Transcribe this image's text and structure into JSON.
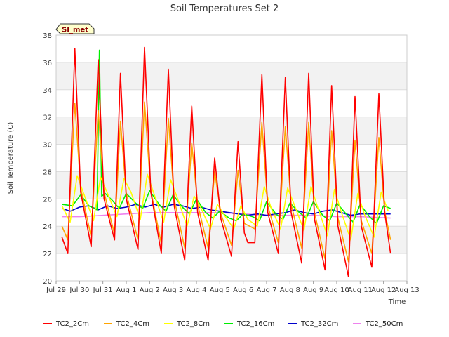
{
  "chart_data": {
    "type": "line",
    "title": "Soil Temperatures Set 2",
    "xlabel": "Time",
    "ylabel": "Soil Temperature (C)",
    "site_badge": "SI_met",
    "ylim": [
      20,
      38
    ],
    "yticks": [
      20,
      22,
      24,
      26,
      28,
      30,
      32,
      34,
      36,
      38
    ],
    "xlim": [
      0,
      15
    ],
    "xtick_labels": [
      "Jul 29",
      "Jul 30",
      "Jul 31",
      "Aug 1",
      "Aug 2",
      "Aug 3",
      "Aug 4",
      "Aug 5",
      "Aug 6",
      "Aug 7",
      "Aug 8",
      "Aug 9",
      "Aug 10",
      "Aug 11",
      "Aug 12",
      "Aug 13"
    ],
    "x_unit": "days since Jul 29",
    "grid": true,
    "legend_position": "bottom",
    "series": [
      {
        "name": "TC2_2Cm",
        "color": "#ff0000",
        "x": [
          0.25,
          0.5,
          0.8,
          1.05,
          1.5,
          1.8,
          2.05,
          2.5,
          2.75,
          3.0,
          3.5,
          3.78,
          4.05,
          4.5,
          4.8,
          5.05,
          5.5,
          5.8,
          6.05,
          6.5,
          6.78,
          7.05,
          7.5,
          7.78,
          8.05,
          8.2,
          8.5,
          8.8,
          9.05,
          9.5,
          9.8,
          10.05,
          10.5,
          10.8,
          11.05,
          11.5,
          11.78,
          12.05,
          12.5,
          12.78,
          13.05,
          13.5,
          13.8,
          14.05,
          14.3
        ],
        "y": [
          23.2,
          22.0,
          37.0,
          26.5,
          22.5,
          36.2,
          26.0,
          23.0,
          35.2,
          26.0,
          22.3,
          37.1,
          26.5,
          22.0,
          35.5,
          25.5,
          21.5,
          32.8,
          25.0,
          21.5,
          29.0,
          24.5,
          21.8,
          30.2,
          23.5,
          22.8,
          22.8,
          35.1,
          25.0,
          22.0,
          34.9,
          25.0,
          21.3,
          35.2,
          24.5,
          20.8,
          34.3,
          24.0,
          20.3,
          33.5,
          24.0,
          21.0,
          33.7,
          25.0,
          22.0
        ]
      },
      {
        "name": "TC2_4Cm",
        "color": "#ffa500",
        "x": [
          0.25,
          0.5,
          0.8,
          1.05,
          1.5,
          1.8,
          2.05,
          2.5,
          2.75,
          3.0,
          3.5,
          3.78,
          4.05,
          4.5,
          4.8,
          5.05,
          5.5,
          5.8,
          6.05,
          6.5,
          6.78,
          7.05,
          7.5,
          7.78,
          8.05,
          8.5,
          8.8,
          9.05,
          9.5,
          9.8,
          10.05,
          10.5,
          10.8,
          11.05,
          11.5,
          11.78,
          12.05,
          12.5,
          12.78,
          13.05,
          13.5,
          13.8,
          14.05,
          14.3
        ],
        "y": [
          24.0,
          23.0,
          33.0,
          26.8,
          23.2,
          32.5,
          26.5,
          23.4,
          31.7,
          26.4,
          23.0,
          33.1,
          26.6,
          22.7,
          31.9,
          26.0,
          22.4,
          30.1,
          25.6,
          22.4,
          28.0,
          24.9,
          22.6,
          28.1,
          24.2,
          23.8,
          31.6,
          25.5,
          22.8,
          31.3,
          25.6,
          22.4,
          31.6,
          25.0,
          21.6,
          31.0,
          24.6,
          21.4,
          30.3,
          24.4,
          22.0,
          30.5,
          25.1,
          23.0
        ]
      },
      {
        "name": "TC2_8Cm",
        "color": "#ffff00",
        "x": [
          0.25,
          0.6,
          0.9,
          1.2,
          1.6,
          1.9,
          2.2,
          2.6,
          2.9,
          3.2,
          3.6,
          3.9,
          4.2,
          4.6,
          4.9,
          5.2,
          5.6,
          5.9,
          6.2,
          6.6,
          6.9,
          7.2,
          7.6,
          7.9,
          8.2,
          8.6,
          8.9,
          9.2,
          9.6,
          9.9,
          10.2,
          10.6,
          10.9,
          11.2,
          11.6,
          11.9,
          12.2,
          12.6,
          12.9,
          13.2,
          13.6,
          13.9,
          14.2
        ],
        "y": [
          25.5,
          24.3,
          27.7,
          26.3,
          24.4,
          27.6,
          26.4,
          24.7,
          27.5,
          26.5,
          24.5,
          27.8,
          26.3,
          24.3,
          27.4,
          26.0,
          24.0,
          26.2,
          25.3,
          23.8,
          25.6,
          24.8,
          23.8,
          25.5,
          24.5,
          24.0,
          26.9,
          25.3,
          23.8,
          26.8,
          25.5,
          23.7,
          26.9,
          25.3,
          23.3,
          26.7,
          25.0,
          23.0,
          26.4,
          24.8,
          23.2,
          26.5,
          25.1
        ]
      },
      {
        "name": "TC2_16Cm",
        "color": "#00ee00",
        "x": [
          0.25,
          0.7,
          1.05,
          1.4,
          1.75,
          1.85,
          1.95,
          2.1,
          2.4,
          2.7,
          3.0,
          3.4,
          3.7,
          4.0,
          4.4,
          4.7,
          5.0,
          5.4,
          5.7,
          6.0,
          6.4,
          6.7,
          7.0,
          7.4,
          7.7,
          8.0,
          8.4,
          8.7,
          9.0,
          9.4,
          9.7,
          10.0,
          10.4,
          10.7,
          11.0,
          11.4,
          11.7,
          12.0,
          12.4,
          12.7,
          13.0,
          13.4,
          13.7,
          14.0,
          14.3
        ],
        "y": [
          25.6,
          25.5,
          26.3,
          25.5,
          25.2,
          36.9,
          26.2,
          26.4,
          25.9,
          25.3,
          26.4,
          25.7,
          25.3,
          26.6,
          25.6,
          25.1,
          26.3,
          25.4,
          24.9,
          26.0,
          25.0,
          24.6,
          25.1,
          24.6,
          24.4,
          24.9,
          24.7,
          24.4,
          25.8,
          24.9,
          24.5,
          25.7,
          25.0,
          24.6,
          25.8,
          24.8,
          24.4,
          25.7,
          24.9,
          24.3,
          25.6,
          24.7,
          24.2,
          25.5,
          25.3
        ]
      },
      {
        "name": "TC2_32Cm",
        "color": "#0000cc",
        "x": [
          0.25,
          0.6,
          1.0,
          1.4,
          1.8,
          2.2,
          2.6,
          3.0,
          3.4,
          3.8,
          4.2,
          4.6,
          5.0,
          5.4,
          5.8,
          6.2,
          6.6,
          7.0,
          7.4,
          7.8,
          8.2,
          8.6,
          9.0,
          9.4,
          9.8,
          10.2,
          10.6,
          11.0,
          11.4,
          11.8,
          12.2,
          12.6,
          13.0,
          13.4,
          13.8,
          14.3
        ],
        "y": [
          25.3,
          25.1,
          25.4,
          25.5,
          25.2,
          25.5,
          25.3,
          25.4,
          25.6,
          25.4,
          25.6,
          25.4,
          25.6,
          25.5,
          25.3,
          25.4,
          25.2,
          25.1,
          25.0,
          24.9,
          24.8,
          24.9,
          24.8,
          24.9,
          25.0,
          25.2,
          25.0,
          24.9,
          25.1,
          25.2,
          25.0,
          24.8,
          24.9,
          24.9,
          24.9,
          24.9
        ]
      },
      {
        "name": "TC2_50Cm",
        "color": "#ee82ee",
        "x": [
          0.25,
          1.0,
          2.0,
          3.0,
          4.0,
          5.0,
          6.0,
          7.0,
          8.0,
          9.0,
          10.0,
          11.0,
          12.0,
          13.0,
          14.3
        ],
        "y": [
          24.7,
          24.7,
          24.8,
          24.9,
          25.0,
          25.0,
          25.0,
          25.0,
          24.9,
          24.8,
          24.8,
          24.8,
          24.7,
          24.7,
          24.6
        ]
      }
    ]
  }
}
